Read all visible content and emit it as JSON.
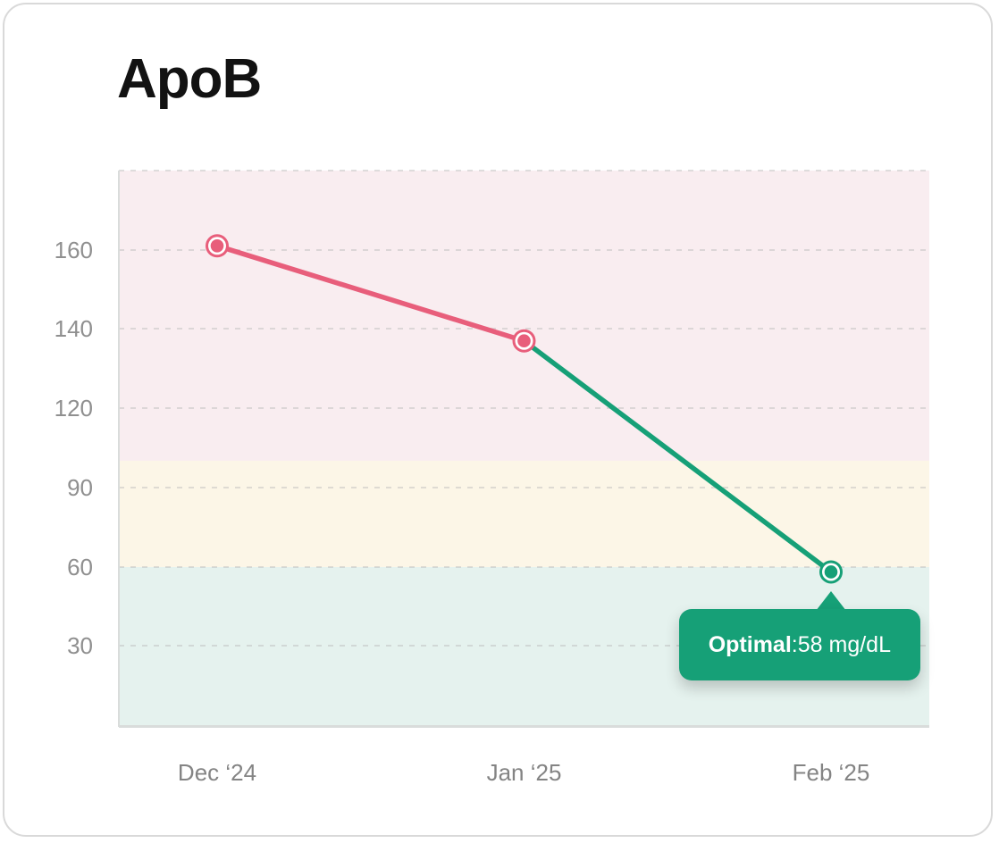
{
  "card": {
    "title": "ApoB"
  },
  "chart_data": {
    "type": "line",
    "title": "ApoB",
    "unit": "mg/dL",
    "x": [
      "Dec ‘24",
      "Jan ‘25",
      "Feb ‘25"
    ],
    "values": [
      161,
      137,
      58
    ],
    "point_colors": [
      "#e85e7b",
      "#e85e7b",
      "#16a077"
    ],
    "segment_colors": [
      "#e85e7b",
      "#16a077"
    ],
    "y_axis": {
      "tick_values": [
        180,
        160,
        140,
        120,
        90,
        60,
        30,
        0
      ],
      "labels": [
        {
          "value": 160,
          "text": "160"
        },
        {
          "value": 140,
          "text": "140"
        },
        {
          "value": 120,
          "text": "120"
        },
        {
          "value": 90,
          "text": "90"
        },
        {
          "value": 60,
          "text": "60"
        },
        {
          "value": 30,
          "text": "30"
        }
      ],
      "gridline_values": [
        180,
        160,
        140,
        120,
        90,
        60,
        30
      ]
    },
    "bands": [
      {
        "from": 180,
        "to": 100,
        "color": "#f9edf0"
      },
      {
        "from": 100,
        "to": 60,
        "color": "#fcf6e7"
      },
      {
        "from": 60,
        "to": 0,
        "color": "#e5f2ee"
      }
    ],
    "tooltip": {
      "label": "Optimal",
      "separator": ": ",
      "value": "58 mg/dL",
      "color": "#16a077",
      "anchor_point_index": 2
    },
    "legend_position": "none",
    "grid": "dashed-horizontal"
  }
}
